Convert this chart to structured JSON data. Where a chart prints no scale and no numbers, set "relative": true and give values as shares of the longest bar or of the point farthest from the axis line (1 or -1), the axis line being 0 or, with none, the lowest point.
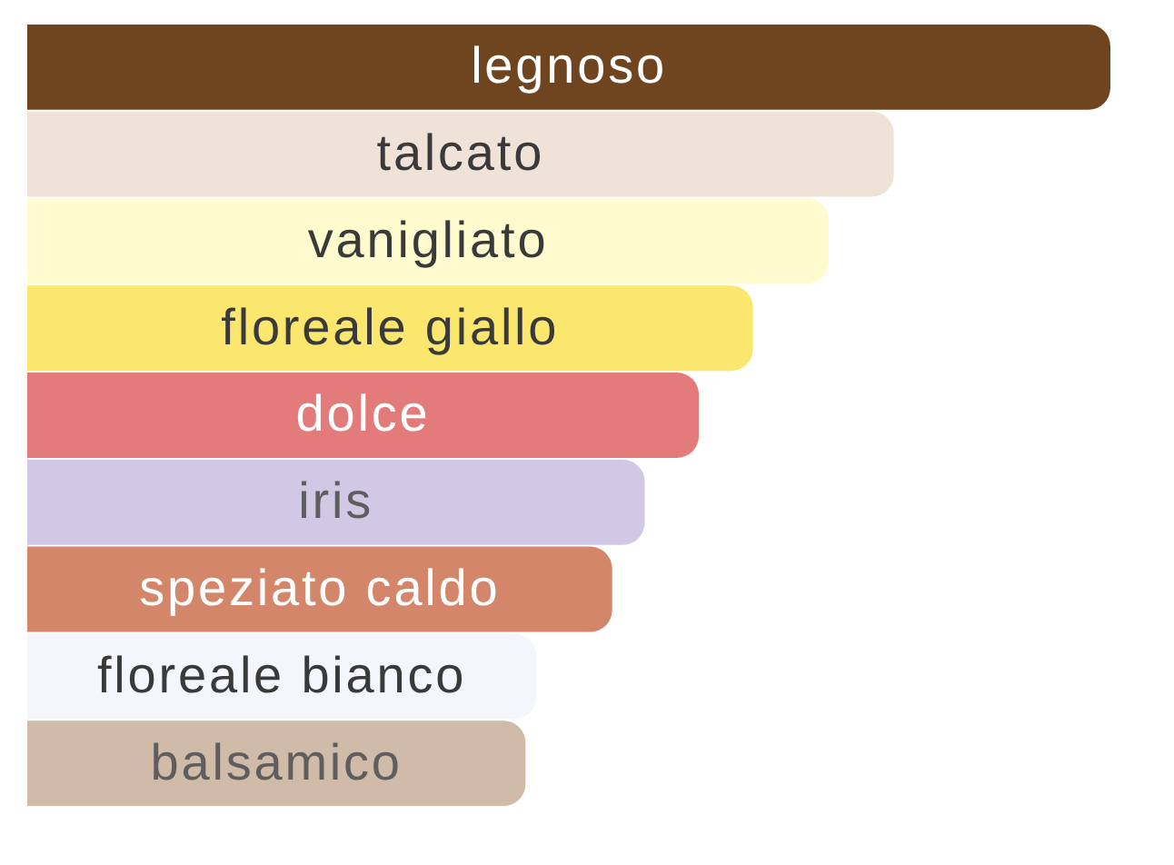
{
  "chart_data": {
    "type": "bar",
    "orientation": "horizontal",
    "relative": true,
    "categories": [
      "legnoso",
      "talcato",
      "vanigliato",
      "floreale giallo",
      "dolce",
      "iris",
      "speziato caldo",
      "floreale bianco",
      "balsamico"
    ],
    "values": [
      1,
      0.8,
      0.74,
      0.67,
      0.62,
      0.57,
      0.54,
      0.47,
      0.46
    ],
    "colors": [
      "#6f451f",
      "#efe2d7",
      "#fffbcf",
      "#fce76e",
      "#e27b7a",
      "#d0c8e4",
      "#d4866a",
      "#f5f6fc",
      "#d0bba8"
    ],
    "legend": false
  }
}
